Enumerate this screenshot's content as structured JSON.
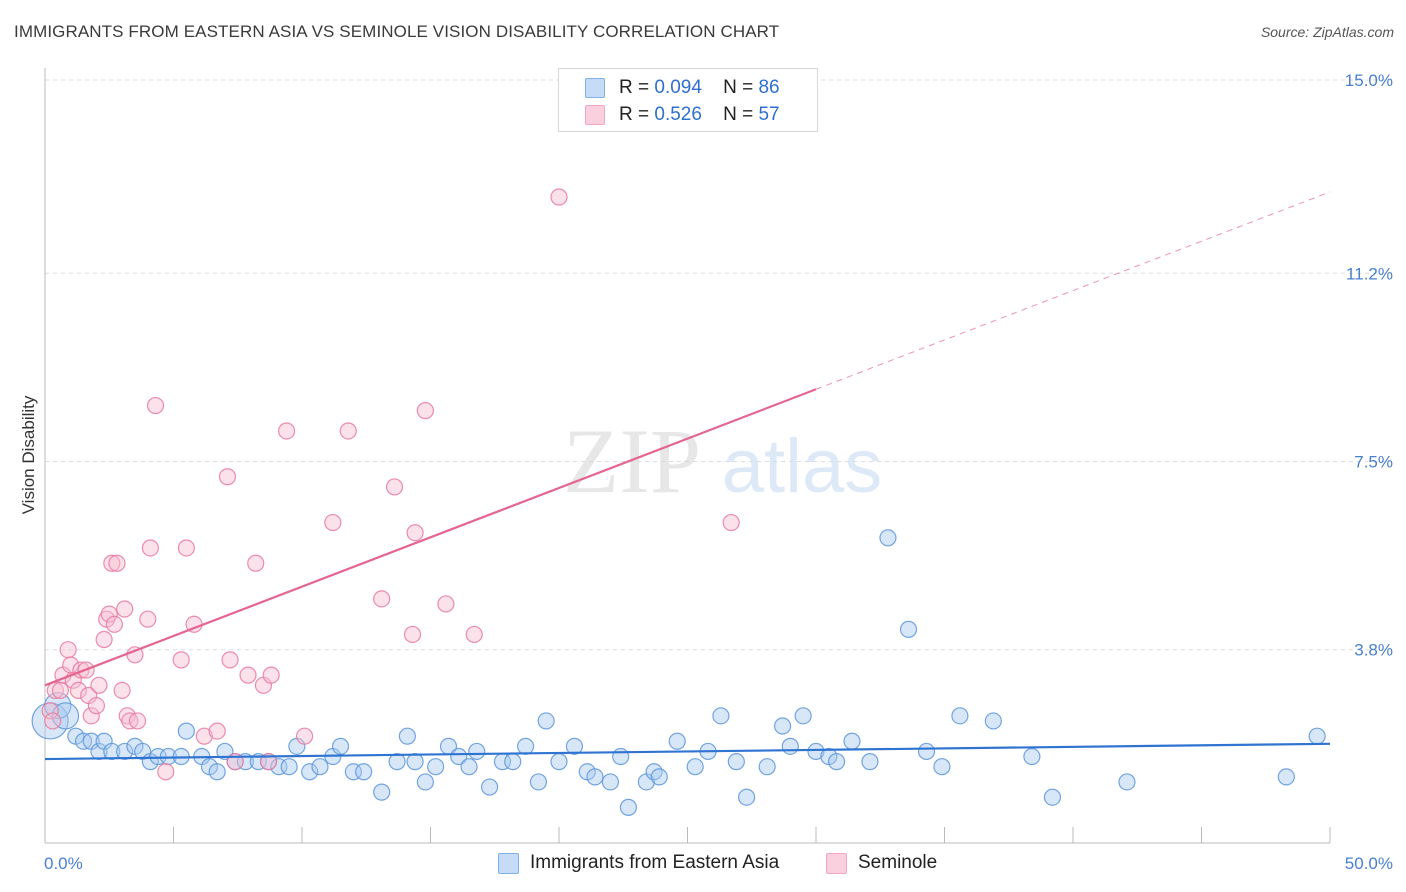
{
  "header": {
    "title": "IMMIGRANTS FROM EASTERN ASIA VS SEMINOLE VISION DISABILITY CORRELATION CHART",
    "source": "Source: ZipAtlas.com"
  },
  "watermark": {
    "part1": "ZIP",
    "part2": "atlas"
  },
  "legend": {
    "rows": [
      {
        "r_label": "R =",
        "r_value": "0.094",
        "n_label": "N =",
        "n_value": "86",
        "color": "#7fb0e8"
      },
      {
        "r_label": "R =",
        "r_value": "0.526",
        "n_label": "N =",
        "n_value": "57",
        "color": "#f4a8c0"
      }
    ]
  },
  "bottom_legend": {
    "items": [
      {
        "label": "Immigrants from Eastern Asia",
        "color": "#7fb0e8"
      },
      {
        "label": "Seminole",
        "color": "#f4a8c0"
      }
    ]
  },
  "chart_data": {
    "type": "scatter",
    "ylabel": "Vision Disability",
    "xlim": [
      0,
      50
    ],
    "ylim": [
      0,
      15
    ],
    "x_tick_labels": [
      "0.0%",
      "50.0%"
    ],
    "y_ticks": [
      {
        "value": 3.8,
        "label": "3.8%"
      },
      {
        "value": 7.5,
        "label": "7.5%"
      },
      {
        "value": 11.2,
        "label": "11.2%"
      },
      {
        "value": 15.0,
        "label": "15.0%"
      }
    ],
    "grid": true,
    "series": [
      {
        "name": "Immigrants from Eastern Asia",
        "color": "#5b95dd",
        "fill": "#a9c9f0",
        "trend": {
          "x0": 0,
          "y0": 1.65,
          "x1": 50,
          "y1": 1.95,
          "solid_to": 50
        },
        "points": [
          [
            0.2,
            2.4
          ],
          [
            0.5,
            2.7
          ],
          [
            0.8,
            2.5
          ],
          [
            1.2,
            2.1
          ],
          [
            1.5,
            2.0
          ],
          [
            1.8,
            2.0
          ],
          [
            2.1,
            1.8
          ],
          [
            2.3,
            2.0
          ],
          [
            2.6,
            1.8
          ],
          [
            3.1,
            1.8
          ],
          [
            3.5,
            1.9
          ],
          [
            3.8,
            1.8
          ],
          [
            4.1,
            1.6
          ],
          [
            4.4,
            1.7
          ],
          [
            4.8,
            1.7
          ],
          [
            5.3,
            1.7
          ],
          [
            5.5,
            2.2
          ],
          [
            6.1,
            1.7
          ],
          [
            6.4,
            1.5
          ],
          [
            6.7,
            1.4
          ],
          [
            7.0,
            1.8
          ],
          [
            7.4,
            1.6
          ],
          [
            7.8,
            1.6
          ],
          [
            8.3,
            1.6
          ],
          [
            8.7,
            1.6
          ],
          [
            9.1,
            1.5
          ],
          [
            9.5,
            1.5
          ],
          [
            9.8,
            1.9
          ],
          [
            10.3,
            1.4
          ],
          [
            10.7,
            1.5
          ],
          [
            11.2,
            1.7
          ],
          [
            11.5,
            1.9
          ],
          [
            12.0,
            1.4
          ],
          [
            12.4,
            1.4
          ],
          [
            13.1,
            1.0
          ],
          [
            13.7,
            1.6
          ],
          [
            14.1,
            2.1
          ],
          [
            14.4,
            1.6
          ],
          [
            14.8,
            1.2
          ],
          [
            15.2,
            1.5
          ],
          [
            15.7,
            1.9
          ],
          [
            16.1,
            1.7
          ],
          [
            16.5,
            1.5
          ],
          [
            16.8,
            1.8
          ],
          [
            17.3,
            1.1
          ],
          [
            17.8,
            1.6
          ],
          [
            18.2,
            1.6
          ],
          [
            18.7,
            1.9
          ],
          [
            19.2,
            1.2
          ],
          [
            19.5,
            2.4
          ],
          [
            20.0,
            1.6
          ],
          [
            20.6,
            1.9
          ],
          [
            21.1,
            1.4
          ],
          [
            21.4,
            1.3
          ],
          [
            22.0,
            1.2
          ],
          [
            22.4,
            1.7
          ],
          [
            22.7,
            0.7
          ],
          [
            23.4,
            1.2
          ],
          [
            23.7,
            1.4
          ],
          [
            23.9,
            1.3
          ],
          [
            24.6,
            2.0
          ],
          [
            25.3,
            1.5
          ],
          [
            25.8,
            1.8
          ],
          [
            26.3,
            2.5
          ],
          [
            26.9,
            1.6
          ],
          [
            27.3,
            0.9
          ],
          [
            28.1,
            1.5
          ],
          [
            28.7,
            2.3
          ],
          [
            29.0,
            1.9
          ],
          [
            29.5,
            2.5
          ],
          [
            30.0,
            1.8
          ],
          [
            30.5,
            1.7
          ],
          [
            30.8,
            1.6
          ],
          [
            31.4,
            2.0
          ],
          [
            32.1,
            1.6
          ],
          [
            32.8,
            6.0
          ],
          [
            33.6,
            4.2
          ],
          [
            34.3,
            1.8
          ],
          [
            34.9,
            1.5
          ],
          [
            35.6,
            2.5
          ],
          [
            36.9,
            2.4
          ],
          [
            38.4,
            1.7
          ],
          [
            39.2,
            0.9
          ],
          [
            42.1,
            1.2
          ],
          [
            48.3,
            1.3
          ],
          [
            49.5,
            2.1
          ]
        ]
      },
      {
        "name": "Seminole",
        "color": "#e8799d",
        "fill": "#f7bfd0",
        "trend": {
          "x0": 0,
          "y0": 3.1,
          "x1": 50,
          "y1": 12.8,
          "solid_to": 30
        },
        "points": [
          [
            0.2,
            2.6
          ],
          [
            0.3,
            2.4
          ],
          [
            0.4,
            3.0
          ],
          [
            0.6,
            3.0
          ],
          [
            0.7,
            3.3
          ],
          [
            0.9,
            3.8
          ],
          [
            1.0,
            3.5
          ],
          [
            1.1,
            3.2
          ],
          [
            1.3,
            3.0
          ],
          [
            1.4,
            3.4
          ],
          [
            1.6,
            3.4
          ],
          [
            1.7,
            2.9
          ],
          [
            1.8,
            2.5
          ],
          [
            2.0,
            2.7
          ],
          [
            2.1,
            3.1
          ],
          [
            2.3,
            4.0
          ],
          [
            2.4,
            4.4
          ],
          [
            2.5,
            4.5
          ],
          [
            2.6,
            5.5
          ],
          [
            2.7,
            4.3
          ],
          [
            2.8,
            5.5
          ],
          [
            3.0,
            3.0
          ],
          [
            3.1,
            4.6
          ],
          [
            3.2,
            2.5
          ],
          [
            3.3,
            2.4
          ],
          [
            3.5,
            3.7
          ],
          [
            3.6,
            2.4
          ],
          [
            4.0,
            4.4
          ],
          [
            4.1,
            5.8
          ],
          [
            4.3,
            8.6
          ],
          [
            4.7,
            1.4
          ],
          [
            5.3,
            3.6
          ],
          [
            5.5,
            5.8
          ],
          [
            5.8,
            4.3
          ],
          [
            6.2,
            2.1
          ],
          [
            6.7,
            2.2
          ],
          [
            7.1,
            7.2
          ],
          [
            7.2,
            3.6
          ],
          [
            7.4,
            1.6
          ],
          [
            7.9,
            3.3
          ],
          [
            8.2,
            5.5
          ],
          [
            8.5,
            3.1
          ],
          [
            8.7,
            1.6
          ],
          [
            8.8,
            3.3
          ],
          [
            9.4,
            8.1
          ],
          [
            10.1,
            2.1
          ],
          [
            11.2,
            6.3
          ],
          [
            11.8,
            8.1
          ],
          [
            13.1,
            4.8
          ],
          [
            13.6,
            7.0
          ],
          [
            14.4,
            6.1
          ],
          [
            14.8,
            8.5
          ],
          [
            15.6,
            4.7
          ],
          [
            16.7,
            4.1
          ],
          [
            20.0,
            12.7
          ],
          [
            26.7,
            6.3
          ],
          [
            14.3,
            4.1
          ]
        ]
      }
    ]
  }
}
